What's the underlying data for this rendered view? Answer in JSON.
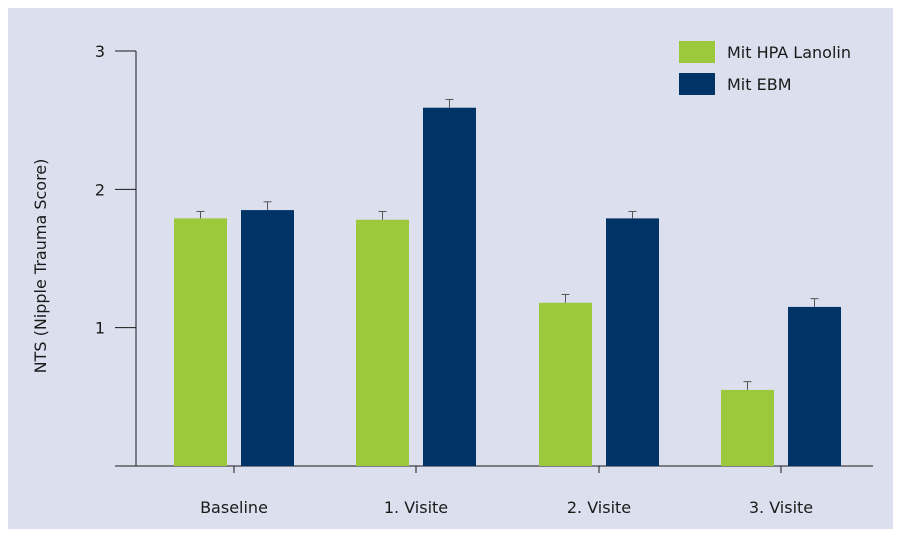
{
  "chart_data": {
    "type": "bar",
    "ylabel": "NTS (Nipple Trauma Score)",
    "ylim": [
      0,
      3
    ],
    "yticks": [
      1,
      2,
      3
    ],
    "categories": [
      "Baseline",
      "1. Visite",
      "2. Visite",
      "3. Visite"
    ],
    "series": [
      {
        "name": "Mit HPA Lanolin",
        "color": "#9bc93b",
        "values": [
          1.79,
          1.78,
          1.18,
          0.55
        ],
        "errors": [
          0.05,
          0.06,
          0.06,
          0.06
        ]
      },
      {
        "name": "Mit EBM",
        "color": "#003366",
        "values": [
          1.85,
          2.59,
          1.79,
          1.15
        ],
        "errors": [
          0.06,
          0.06,
          0.05,
          0.06
        ]
      }
    ],
    "legend_position": "top-right",
    "grid": false
  }
}
